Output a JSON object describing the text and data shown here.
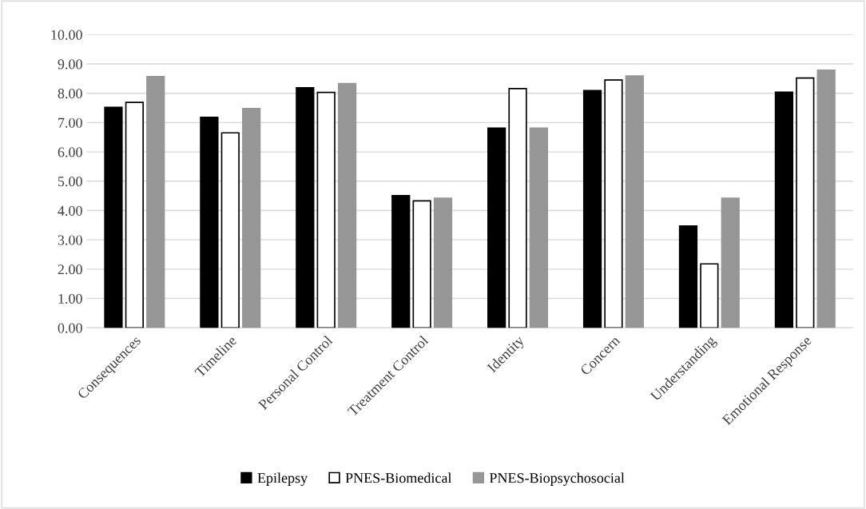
{
  "chart_data": {
    "type": "bar",
    "categories": [
      "Consequences",
      "Timeline",
      "Personal Control",
      "Treatment Control",
      "Identity",
      "Concern",
      "Understanding",
      "Emotional Response"
    ],
    "series": [
      {
        "name": "Epilepsy",
        "color": "#000000",
        "values": [
          7.52,
          7.18,
          8.19,
          4.51,
          6.81,
          8.09,
          3.47,
          8.04
        ]
      },
      {
        "name": "PNES-Biomedical",
        "color": "#ffffff",
        "values": [
          7.69,
          6.65,
          8.03,
          4.33,
          8.16,
          8.45,
          2.18,
          8.52
        ]
      },
      {
        "name": "PNES-Biopsychosocial",
        "color": "#969696",
        "values": [
          8.57,
          7.48,
          8.33,
          4.42,
          6.81,
          8.59,
          4.42,
          8.79
        ]
      }
    ],
    "ylim": [
      0,
      10
    ],
    "yticks": [
      {
        "value": 0,
        "label": "0.00"
      },
      {
        "value": 1,
        "label": "1.00"
      },
      {
        "value": 2,
        "label": "2.00"
      },
      {
        "value": 3,
        "label": "3.00"
      },
      {
        "value": 4,
        "label": "4.00"
      },
      {
        "value": 5,
        "label": "5.00"
      },
      {
        "value": 6,
        "label": "6.00"
      },
      {
        "value": 7,
        "label": "7.00"
      },
      {
        "value": 8,
        "label": "8.00"
      },
      {
        "value": 9,
        "label": "9.00"
      },
      {
        "value": 10,
        "label": "10.00"
      }
    ],
    "grid": "y",
    "legend": "bottom"
  }
}
